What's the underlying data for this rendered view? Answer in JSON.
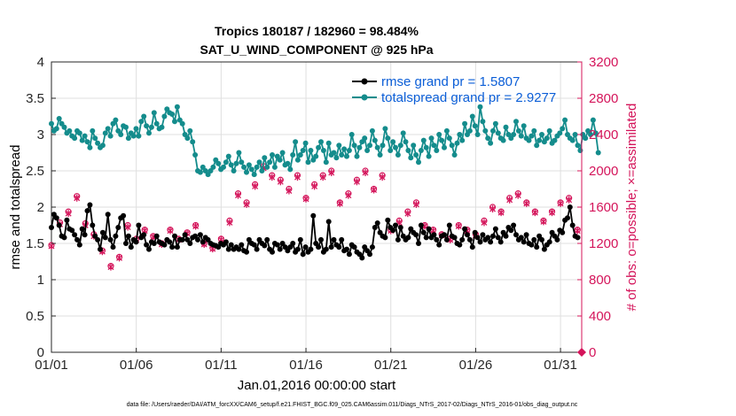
{
  "chart_data": {
    "type": "line",
    "title": "Tropics 180187 / 182960 = 98.484%",
    "subtitle": "SAT_U_WIND_COMPONENT @ 925 hPa",
    "xlabel": "Jan.01,2016 00:00:00 start",
    "ylabel": "rmse and totalspread",
    "ylabel_right": "# of obs: o=possible; ×=assimilated",
    "footnote": "data file: /Users/raeder/DAI/ATM_forcXX/CAM6_setup/f.e21.FHIST_BGC.f09_025.CAM6assim.011/Diags_NTrS_2017-02/Diags_NTrS_2016-01/obs_diag_output.nc",
    "xlim": [
      0,
      31.25
    ],
    "ylim": [
      0,
      4
    ],
    "ylim_right": [
      0,
      3200
    ],
    "x_ticks": [
      0,
      5,
      10,
      15,
      20,
      25,
      30
    ],
    "x_tick_labels": [
      "01/01",
      "01/06",
      "01/11",
      "01/16",
      "01/21",
      "01/26",
      "01/31"
    ],
    "y_ticks": [
      0,
      0.5,
      1,
      1.5,
      2,
      2.5,
      3,
      3.5,
      4
    ],
    "y_tick_labels": [
      "0",
      "0.5",
      "1",
      "1.5",
      "2",
      "2.5",
      "3",
      "3.5",
      "4"
    ],
    "y_right_ticks": [
      0,
      400,
      800,
      1200,
      1600,
      2000,
      2400,
      2800,
      3200
    ],
    "y_right_tick_labels": [
      "0",
      "400",
      "800",
      "1200",
      "1600",
      "2000",
      "2400",
      "2800",
      "3200"
    ],
    "grid": true,
    "legend_position": "top-right",
    "series": [
      {
        "name": "rmse grand pr = 1.5807",
        "color": "#000000",
        "marker": "circle",
        "axis": "left",
        "values": [
          1.72,
          1.9,
          1.85,
          1.75,
          1.6,
          1.58,
          1.82,
          1.7,
          1.68,
          1.62,
          1.55,
          1.48,
          1.7,
          1.62,
          1.95,
          2.03,
          1.75,
          1.6,
          1.55,
          1.42,
          1.65,
          1.58,
          1.9,
          1.55,
          1.45,
          1.6,
          1.72,
          1.85,
          1.88,
          1.5,
          1.6,
          1.45,
          1.55,
          1.52,
          1.75,
          1.58,
          1.62,
          1.48,
          1.42,
          1.52,
          1.5,
          1.6,
          1.52,
          1.5,
          1.48,
          1.55,
          1.52,
          1.45,
          1.6,
          1.45,
          1.55,
          1.55,
          1.62,
          1.55,
          1.5,
          1.58,
          1.6,
          1.55,
          1.62,
          1.52,
          1.58,
          1.55,
          1.5,
          1.48,
          1.47,
          1.45,
          1.5,
          1.48,
          1.52,
          1.42,
          1.48,
          1.42,
          1.45,
          1.42,
          1.48,
          1.4,
          1.38,
          1.55,
          1.5,
          1.48,
          1.42,
          1.55,
          1.5,
          1.47,
          1.55,
          1.42,
          1.38,
          1.5,
          1.48,
          1.42,
          1.5,
          1.45,
          1.4,
          1.45,
          1.5,
          1.38,
          1.42,
          1.55,
          1.35,
          1.45,
          1.38,
          1.42,
          1.88,
          1.5,
          1.45,
          1.55,
          1.38,
          1.42,
          1.8,
          1.45,
          1.55,
          1.48,
          1.45,
          1.55,
          1.4,
          1.42,
          1.35,
          1.48,
          1.45,
          1.38,
          1.35,
          1.3,
          1.45,
          1.4,
          1.35,
          1.45,
          1.72,
          1.78,
          1.65,
          1.6,
          1.58,
          1.82,
          1.72,
          1.68,
          1.75,
          1.55,
          1.72,
          1.6,
          1.55,
          1.58,
          1.7,
          1.65,
          1.62,
          1.5,
          1.75,
          1.65,
          1.58,
          1.7,
          1.58,
          1.62,
          1.55,
          1.48,
          1.6,
          1.62,
          1.55,
          1.75,
          1.6,
          1.58,
          1.5,
          1.48,
          1.55,
          1.7,
          1.62,
          1.55,
          1.45,
          1.65,
          1.58,
          1.52,
          1.62,
          1.55,
          1.58,
          1.52,
          1.6,
          1.7,
          1.58,
          1.52,
          1.65,
          1.6,
          1.72,
          1.68,
          1.75,
          1.62,
          1.55,
          1.58,
          1.52,
          1.62,
          1.5,
          1.48,
          1.55,
          1.45,
          1.6,
          1.55,
          1.42,
          1.48,
          1.52,
          1.65,
          1.6,
          1.55,
          1.68,
          1.65,
          1.82,
          1.85,
          2.0,
          1.75,
          1.6,
          1.58
        ],
        "x_start": 0.0,
        "x_step": 0.1513
      },
      {
        "name": "totalspread grand pr = 2.9277",
        "color": "#148c8c",
        "marker": "circle",
        "axis": "left",
        "values": [
          3.15,
          3.05,
          3.08,
          3.22,
          3.15,
          3.1,
          3.02,
          3.05,
          2.98,
          2.95,
          3.05,
          3.02,
          2.92,
          2.98,
          2.9,
          2.82,
          3.05,
          2.95,
          2.88,
          2.82,
          2.85,
          3.02,
          3.08,
          2.98,
          3.15,
          3.2,
          3.05,
          3.0,
          3.12,
          3.1,
          2.95,
          3.02,
          2.98,
          3.08,
          2.98,
          3.18,
          3.25,
          3.12,
          3.02,
          3.1,
          3.3,
          3.15,
          3.08,
          3.1,
          3.25,
          3.35,
          3.3,
          3.28,
          3.18,
          3.38,
          3.2,
          3.15,
          3.0,
          2.95,
          3.05,
          2.9,
          2.72,
          2.5,
          2.48,
          2.55,
          2.5,
          2.45,
          2.5,
          2.55,
          2.65,
          2.6,
          2.52,
          2.55,
          2.62,
          2.7,
          2.58,
          2.5,
          2.6,
          2.75,
          2.62,
          2.55,
          2.48,
          2.58,
          2.52,
          2.45,
          2.55,
          2.62,
          2.5,
          2.68,
          2.55,
          2.62,
          2.72,
          2.55,
          2.7,
          2.65,
          2.75,
          2.58,
          2.6,
          2.52,
          2.72,
          2.9,
          2.65,
          2.72,
          2.78,
          2.88,
          2.62,
          2.78,
          2.65,
          2.7,
          2.82,
          2.9,
          2.78,
          2.62,
          2.88,
          2.72,
          2.75,
          2.68,
          2.85,
          2.72,
          2.8,
          2.7,
          2.78,
          3.0,
          2.85,
          2.7,
          2.82,
          2.9,
          2.95,
          2.78,
          2.85,
          3.05,
          2.92,
          2.82,
          2.72,
          2.85,
          3.08,
          2.95,
          2.78,
          2.9,
          2.82,
          2.72,
          2.85,
          3.02,
          2.9,
          2.78,
          2.68,
          2.85,
          2.72,
          2.62,
          2.78,
          2.92,
          2.82,
          2.7,
          2.95,
          2.85,
          2.78,
          3.0,
          2.92,
          2.82,
          3.05,
          2.95,
          2.85,
          2.72,
          2.88,
          3.0,
          2.92,
          3.15,
          3.0,
          3.05,
          3.25,
          3.12,
          3.0,
          3.38,
          3.18,
          3.05,
          2.95,
          2.88,
          3.05,
          3.15,
          3.02,
          2.95,
          2.92,
          3.1,
          3.0,
          2.95,
          3.0,
          3.18,
          3.05,
          2.98,
          3.12,
          2.95,
          2.92,
          2.98,
          3.05,
          2.85,
          2.92,
          3.0,
          2.9,
          2.95,
          3.05,
          2.88,
          2.92,
          2.98,
          3.02,
          3.08,
          3.2,
          3.0,
          2.95,
          2.92,
          3.0,
          2.85,
          2.78,
          3.0,
          2.95,
          3.05,
          3.0,
          3.2,
          3.02,
          2.75
        ],
        "x_start": 0.0,
        "x_step": 0.1513
      },
      {
        "name": "obs possible",
        "color": "#d4145a",
        "marker": "o",
        "axis": "right",
        "x": [
          0.0,
          0.5,
          1.0,
          1.5,
          2.0,
          2.5,
          3.0,
          3.5,
          4.0,
          4.5,
          5.0,
          5.5,
          6.0,
          6.5,
          7.0,
          7.5,
          8.0,
          8.5,
          9.0,
          9.5,
          10.0,
          10.5,
          11.0,
          11.5,
          12.0,
          12.5,
          13.0,
          13.5,
          14.0,
          14.5,
          15.0,
          15.5,
          16.0,
          16.5,
          17.0,
          17.5,
          18.0,
          18.5,
          19.0,
          19.5,
          20.0,
          20.5,
          21.0,
          21.5,
          22.0,
          22.5,
          23.0,
          23.5,
          24.0,
          24.5,
          25.0,
          25.5,
          26.0,
          26.5,
          27.0,
          27.5,
          28.0,
          28.5,
          29.0,
          29.5,
          30.0,
          30.5,
          31.0
        ],
        "values": [
          1180,
          1430,
          1550,
          1720,
          1420,
          1300,
          1120,
          950,
          1050,
          1400,
          1250,
          1350,
          1280,
          1200,
          1350,
          1250,
          1320,
          1400,
          1200,
          1150,
          1250,
          1450,
          1750,
          1650,
          1850,
          2050,
          1950,
          1900,
          1800,
          1950,
          1700,
          1850,
          1950,
          2000,
          1650,
          1750,
          1900,
          2000,
          1800,
          1950,
          1350,
          1450,
          1550,
          1650,
          1400,
          1350,
          1300,
          1250,
          1400,
          1350,
          1300,
          1450,
          1600,
          1550,
          1700,
          1750,
          1650,
          1550,
          1450,
          1550,
          1650,
          1700,
          1350
        ]
      },
      {
        "name": "obs assimilated",
        "color": "#d4145a",
        "marker": "x",
        "axis": "right",
        "x": [
          0.0,
          0.5,
          1.0,
          1.5,
          2.0,
          2.5,
          3.0,
          3.5,
          4.0,
          4.5,
          5.0,
          5.5,
          6.0,
          6.5,
          7.0,
          7.5,
          8.0,
          8.5,
          9.0,
          9.5,
          10.0,
          10.5,
          11.0,
          11.5,
          12.0,
          12.5,
          13.0,
          13.5,
          14.0,
          14.5,
          15.0,
          15.5,
          16.0,
          16.5,
          17.0,
          17.5,
          18.0,
          18.5,
          19.0,
          19.5,
          20.0,
          20.5,
          21.0,
          21.5,
          22.0,
          22.5,
          23.0,
          23.5,
          24.0,
          24.5,
          25.0,
          25.5,
          26.0,
          26.5,
          27.0,
          27.5,
          28.0,
          28.5,
          29.0,
          29.5,
          30.0,
          30.5,
          31.0
        ],
        "values": [
          1170,
          1410,
          1530,
          1700,
          1400,
          1280,
          1110,
          940,
          1040,
          1380,
          1240,
          1340,
          1270,
          1190,
          1340,
          1240,
          1310,
          1390,
          1190,
          1140,
          1240,
          1430,
          1730,
          1630,
          1830,
          2030,
          1930,
          1880,
          1780,
          1930,
          1690,
          1830,
          1930,
          1980,
          1640,
          1730,
          1880,
          1980,
          1790,
          1930,
          1340,
          1430,
          1530,
          1630,
          1390,
          1340,
          1290,
          1240,
          1390,
          1340,
          1290,
          1430,
          1580,
          1540,
          1680,
          1730,
          1640,
          1540,
          1440,
          1540,
          1640,
          1680,
          1340
        ]
      }
    ]
  }
}
